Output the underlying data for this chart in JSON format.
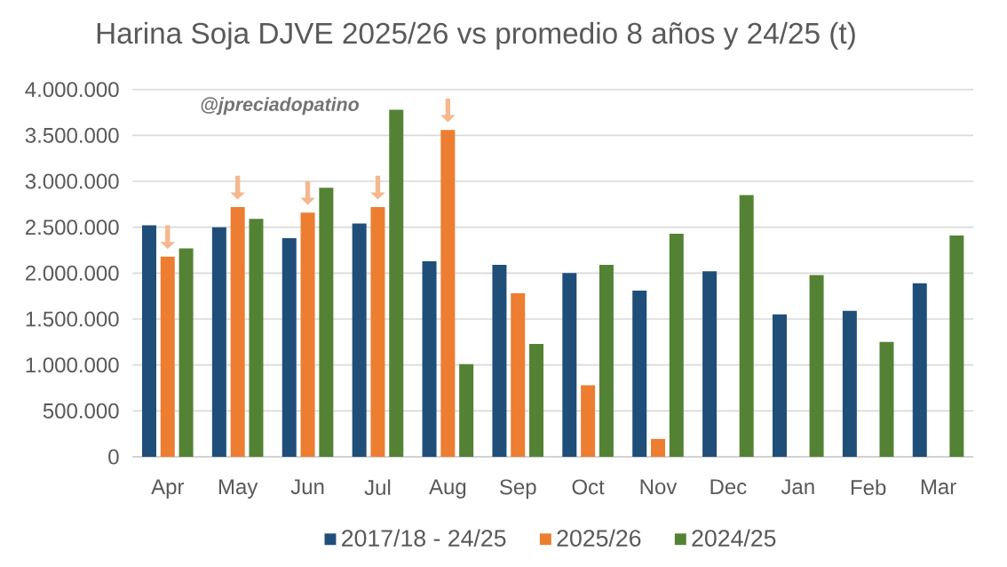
{
  "chart_data": {
    "type": "bar",
    "title": "Harina Soja DJVE 2025/26 vs promedio  8 años y 24/25  (t)",
    "annotations": [
      "@jpreciadopatino"
    ],
    "categories": [
      "Apr",
      "May",
      "Jun",
      "Jul",
      "Aug",
      "Sep",
      "Oct",
      "Nov",
      "Dec",
      "Jan",
      "Feb",
      "Mar"
    ],
    "series": [
      {
        "name": "2017/18 - 24/25",
        "color": "#1f4e79",
        "values": [
          2520000,
          2500000,
          2380000,
          2540000,
          2130000,
          2090000,
          2000000,
          1810000,
          2020000,
          1550000,
          1590000,
          1890000
        ]
      },
      {
        "name": "2025/26",
        "color": "#ed7d31",
        "values": [
          2180000,
          2720000,
          2660000,
          2720000,
          3560000,
          1780000,
          780000,
          195000,
          null,
          null,
          null,
          null
        ]
      },
      {
        "name": "2024/25",
        "color": "#548235",
        "values": [
          2270000,
          2590000,
          2930000,
          3780000,
          1010000,
          1230000,
          2090000,
          2430000,
          2850000,
          1980000,
          1250000,
          2410000
        ]
      }
    ],
    "ylim": [
      0,
      4000000
    ],
    "yticks": [
      {
        "value": 0,
        "label": "0"
      },
      {
        "value": 500000,
        "label": "500.000"
      },
      {
        "value": 1000000,
        "label": "1.000.000"
      },
      {
        "value": 1500000,
        "label": "1.500.000"
      },
      {
        "value": 2000000,
        "label": "2.000.000"
      },
      {
        "value": 2500000,
        "label": "2.500.000"
      },
      {
        "value": 3000000,
        "label": "3.000.000"
      },
      {
        "value": 3500000,
        "label": "3.500.000"
      },
      {
        "value": 4000000,
        "label": "4.000.000"
      }
    ],
    "grid": "y",
    "legend": "bottom"
  }
}
